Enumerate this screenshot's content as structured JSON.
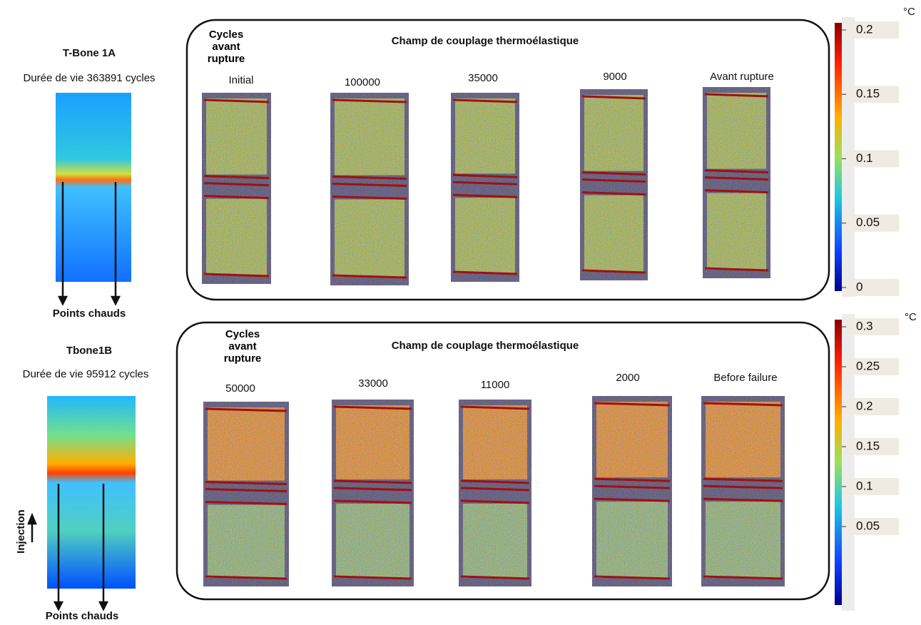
{
  "panels": [
    {
      "specimen": "T-Bone 1A",
      "life": "Durée de vie 363891 cycles",
      "hotspots": "Points chauds",
      "cycles_header": "Cycles avant rupture",
      "field_title": "Champ de couplage thermoélastique",
      "frames": [
        "Initial",
        "100000",
        "35000",
        "9000",
        "Avant rupture"
      ],
      "colorbar": {
        "unit": "°C",
        "ticks": [
          "0.2",
          "0.15",
          "0.1",
          "0.05",
          "0"
        ]
      }
    },
    {
      "specimen": "Tbone1B",
      "life": "Durée de vie 95912 cycles",
      "hotspots": "Points chauds",
      "injection": "Injection",
      "cycles_header": "Cycles avant rupture",
      "field_title": "Champ de couplage thermoélastique",
      "frames": [
        "50000",
        "33000",
        "11000",
        "2000",
        "Before failure"
      ],
      "colorbar": {
        "unit": "°C",
        "ticks": [
          "0.3",
          "0.25",
          "0.2",
          "0.15",
          "0.1",
          "0.05"
        ]
      }
    }
  ]
}
